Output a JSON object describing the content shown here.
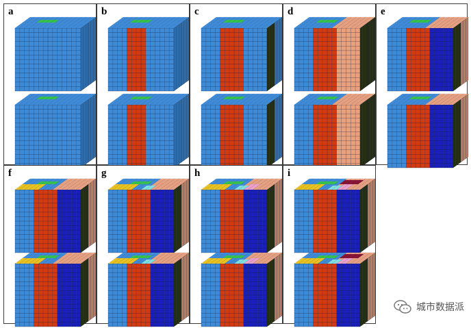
{
  "figure": {
    "panels": [
      {
        "label": "a",
        "top_regions": [
          "blue",
          "green"
        ],
        "bottom_regions": [
          "blue",
          "green"
        ]
      },
      {
        "label": "b",
        "top_regions": [
          "blue",
          "red",
          "green"
        ],
        "bottom_regions": [
          "blue",
          "red",
          "green"
        ]
      },
      {
        "label": "c",
        "top_regions": [
          "blue",
          "red",
          "dark-olive",
          "green"
        ],
        "bottom_regions": [
          "blue",
          "red",
          "dark-olive",
          "green"
        ]
      },
      {
        "label": "d",
        "top_regions": [
          "blue",
          "red",
          "salmon",
          "dark-olive",
          "green"
        ],
        "bottom_regions": [
          "blue",
          "red",
          "salmon",
          "dark-olive",
          "green"
        ]
      },
      {
        "label": "e",
        "top_regions": [
          "blue",
          "red",
          "navy",
          "dark-olive",
          "salmon",
          "green"
        ],
        "bottom_regions": [
          "blue",
          "red",
          "navy",
          "dark-olive",
          "salmon",
          "green"
        ]
      },
      {
        "label": "f",
        "top_regions": [
          "blue",
          "red",
          "navy",
          "dark-olive",
          "salmon",
          "yellow",
          "green"
        ],
        "bottom_regions": [
          "blue",
          "red",
          "navy",
          "dark-olive",
          "salmon",
          "yellow",
          "green"
        ]
      },
      {
        "label": "g",
        "top_regions": [
          "blue",
          "red",
          "navy",
          "dark-olive",
          "salmon",
          "yellow",
          "cyan",
          "green"
        ],
        "bottom_regions": [
          "blue",
          "red",
          "navy",
          "dark-olive",
          "salmon",
          "yellow",
          "cyan",
          "green"
        ]
      },
      {
        "label": "h",
        "top_regions": [
          "blue",
          "red",
          "navy",
          "dark-olive",
          "salmon",
          "yellow",
          "cyan",
          "pink",
          "green"
        ],
        "bottom_regions": [
          "blue",
          "red",
          "navy",
          "dark-olive",
          "salmon",
          "yellow",
          "cyan",
          "pink",
          "green"
        ]
      },
      {
        "label": "i",
        "top_regions": [
          "blue",
          "red",
          "navy",
          "dark-olive",
          "salmon",
          "yellow",
          "cyan",
          "pink",
          "maroon",
          "green"
        ],
        "bottom_regions": [
          "blue",
          "red",
          "navy",
          "dark-olive",
          "salmon",
          "yellow",
          "cyan",
          "pink",
          "maroon",
          "green"
        ]
      }
    ],
    "colors": {
      "blue": "#3e8ad6",
      "red": "#d23a12",
      "green": "#35c24a",
      "dark-olive": "#2f3a1a",
      "salmon": "#e9a07c",
      "navy": "#1a1fb8",
      "yellow": "#f2c21a",
      "cyan": "#7fe0e0",
      "pink": "#f2a0c8",
      "maroon": "#8a1030",
      "grid_line": "#0d1a3a",
      "border": "#3a3a3a"
    }
  },
  "watermark": {
    "text": "城市数据派",
    "icon": "wechat-icon"
  }
}
